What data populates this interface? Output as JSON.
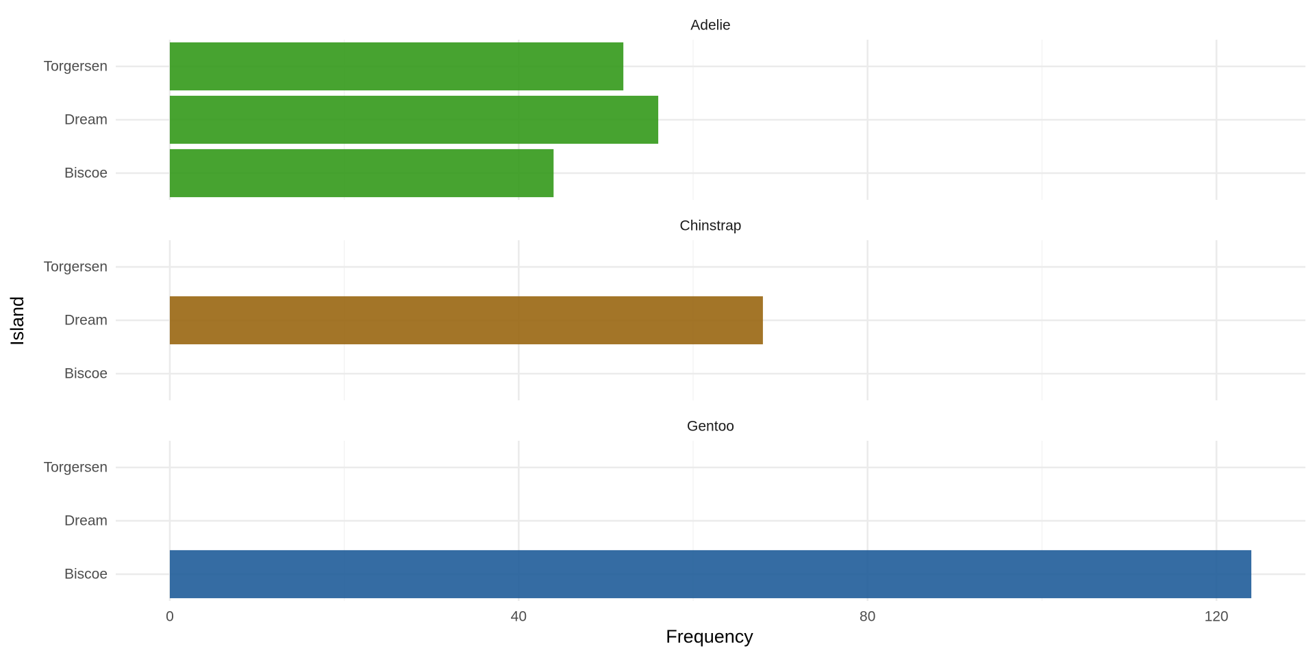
{
  "chart_data": {
    "type": "bar",
    "orientation": "horizontal",
    "facet_by": "species",
    "categories": [
      "Biscoe",
      "Dream",
      "Torgersen"
    ],
    "facets": [
      {
        "name": "Adelie",
        "values": [
          44,
          56,
          52
        ],
        "color": "#33991A"
      },
      {
        "name": "Chinstrap",
        "values": [
          0,
          68,
          0
        ],
        "color": "#996611"
      },
      {
        "name": "Gentoo",
        "values": [
          124,
          0,
          0
        ],
        "color": "#1F5C99"
      }
    ],
    "xlabel": "Frequency",
    "ylabel": "Island",
    "xlim": [
      -6.2,
      130.2
    ],
    "x_ticks": [
      0,
      40,
      80,
      120
    ],
    "x_minor_ticks": [
      20,
      60,
      100
    ],
    "grid": true,
    "legend": "none",
    "bar_opacity": 0.9
  }
}
